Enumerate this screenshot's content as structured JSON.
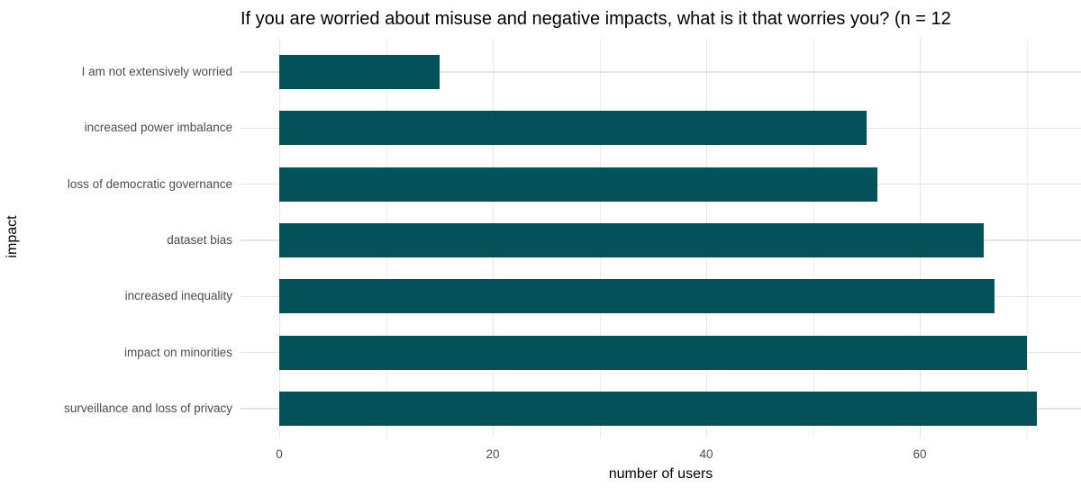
{
  "chart_data": {
    "type": "bar",
    "orientation": "horizontal",
    "title": "If you are worried about misuse and negative impacts, what is it that worries you? (n = 12",
    "xlabel": "number of users",
    "ylabel": "impact",
    "categories": [
      "I am not extensively worried",
      "increased power imbalance",
      "loss of democratic governance",
      "dataset bias",
      "increased inequality",
      "impact on minorities",
      "surveillance and loss of privacy"
    ],
    "values": [
      15,
      55,
      56,
      66,
      67,
      70,
      71
    ],
    "x_ticks": [
      0,
      20,
      40,
      60
    ],
    "x_minor_gridlines": [
      10,
      30,
      50,
      70
    ],
    "xlim": [
      0,
      75
    ],
    "grid": "on",
    "legend": "none",
    "colors": {
      "bar": "#04515A",
      "grid_major": "#E4E4E4",
      "grid_minor": "#EDEDED",
      "axis_text": "#4D4D4D",
      "title_text": "#000000"
    }
  }
}
